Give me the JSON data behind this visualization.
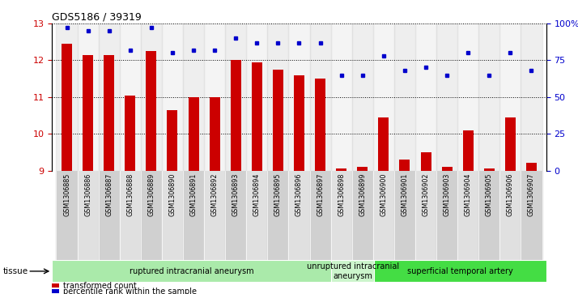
{
  "title": "GDS5186 / 39319",
  "samples": [
    "GSM1306885",
    "GSM1306886",
    "GSM1306887",
    "GSM1306888",
    "GSM1306889",
    "GSM1306890",
    "GSM1306891",
    "GSM1306892",
    "GSM1306893",
    "GSM1306894",
    "GSM1306895",
    "GSM1306896",
    "GSM1306897",
    "GSM1306898",
    "GSM1306899",
    "GSM1306900",
    "GSM1306901",
    "GSM1306902",
    "GSM1306903",
    "GSM1306904",
    "GSM1306905",
    "GSM1306906",
    "GSM1306907"
  ],
  "red_values": [
    12.45,
    12.15,
    12.15,
    11.05,
    12.25,
    10.65,
    11.0,
    11.0,
    12.0,
    11.95,
    11.75,
    11.6,
    11.5,
    9.05,
    9.1,
    10.45,
    9.3,
    9.5,
    9.1,
    10.1,
    9.05,
    10.45,
    9.2
  ],
  "blue_values": [
    97,
    95,
    95,
    82,
    97,
    80,
    82,
    82,
    90,
    87,
    87,
    87,
    87,
    65,
    65,
    78,
    68,
    70,
    65,
    80,
    65,
    80,
    68
  ],
  "groups": [
    {
      "label": "ruptured intracranial aneurysm",
      "start": 0,
      "end": 13,
      "color": "#aaeaaa"
    },
    {
      "label": "unruptured intracranial\naneurysm",
      "start": 13,
      "end": 15,
      "color": "#ccf5cc"
    },
    {
      "label": "superficial temporal artery",
      "start": 15,
      "end": 23,
      "color": "#44dd44"
    }
  ],
  "ylim_left": [
    9,
    13
  ],
  "ylim_right": [
    0,
    100
  ],
  "yticks_left": [
    9,
    10,
    11,
    12,
    13
  ],
  "yticks_right": [
    0,
    25,
    50,
    75,
    100
  ],
  "bar_color": "#cc0000",
  "dot_color": "#0000cc",
  "tissue_label": "tissue",
  "legend_items": [
    {
      "color": "#cc0000",
      "label": "transformed count"
    },
    {
      "color": "#0000cc",
      "label": "percentile rank within the sample"
    }
  ]
}
